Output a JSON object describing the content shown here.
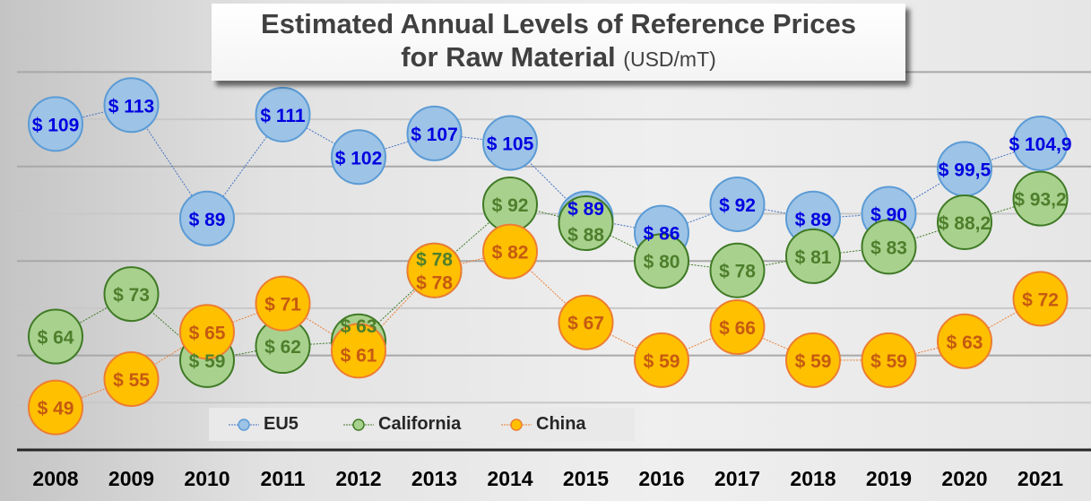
{
  "chart_data": {
    "type": "line",
    "title": "Estimated Annual Levels of Reference Prices for Raw Material",
    "title_line1": "Estimated Annual Levels of Reference Prices",
    "title_line2": "for Raw Material",
    "unit": "(USD/mT)",
    "categories": [
      "2008",
      "2009",
      "2010",
      "2011",
      "2012",
      "2013",
      "2014",
      "2015",
      "2016",
      "2017",
      "2018",
      "2019",
      "2020",
      "2021"
    ],
    "ylim": [
      40,
      130
    ],
    "grid": true,
    "legend_position": "bottom",
    "series": [
      {
        "name": "EU5",
        "color": "#9dc3e6",
        "stroke": "#5b9bd5",
        "label_color": "#0000e0",
        "values": [
          109,
          113,
          89,
          111,
          102,
          107,
          105,
          89,
          86,
          92,
          89,
          90,
          99.5,
          104.9
        ],
        "labels": [
          "$ 109",
          "$ 113",
          "$ 89",
          "$ 111",
          "$ 102",
          "$ 107",
          "$ 105",
          "$ 89",
          "$ 86",
          "$ 92",
          "$ 89",
          "$ 90",
          "$ 99,5",
          "$ 104,9"
        ]
      },
      {
        "name": "California",
        "color": "#a9d18e",
        "stroke": "#3f7a25",
        "label_color": "#4e7f2c",
        "values": [
          64,
          73,
          59,
          62,
          63,
          78,
          92,
          88,
          80,
          78,
          81,
          83,
          88.2,
          93.2
        ],
        "labels": [
          "$ 64",
          "$ 73",
          "$ 59",
          "$ 62",
          "$ 63",
          "$ 78",
          "$ 92",
          "$ 88",
          "$ 80",
          "$ 78",
          "$ 81",
          "$ 83",
          "$ 88,2",
          "$ 93,2"
        ]
      },
      {
        "name": "China",
        "color": "#ffc000",
        "stroke": "#ed7d31",
        "label_color": "#c55a11",
        "values": [
          49,
          55,
          65,
          71,
          61,
          78,
          82,
          67,
          59,
          66,
          59,
          59,
          63,
          72
        ],
        "labels": [
          "$ 49",
          "$ 55",
          "$ 65",
          "$ 71",
          "$ 61",
          "$ 78",
          "$ 82",
          "$ 67",
          "$ 59",
          "$ 66",
          "$ 59",
          "$ 59",
          "$ 63",
          "$ 72"
        ]
      }
    ]
  }
}
